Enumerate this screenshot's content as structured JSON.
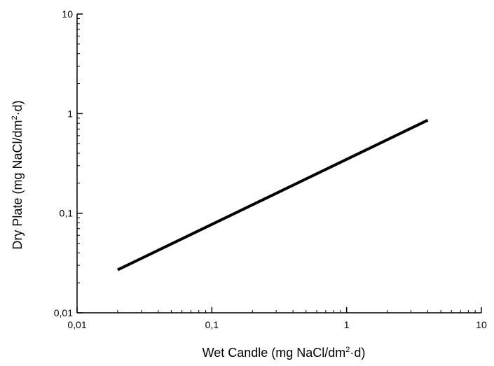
{
  "chart_data": {
    "type": "line",
    "title": "",
    "xlabel": {
      "before": "Wet Candle (mg NaCl/dm",
      "sup": "2",
      "after": "·d)"
    },
    "ylabel": {
      "before": "Dry Plate (mg NaCl/dm",
      "sup": "2",
      "after": "·d)"
    },
    "x_scale": "log",
    "y_scale": "log",
    "xlim": [
      0.01,
      10
    ],
    "ylim": [
      0.01,
      10
    ],
    "x_ticks": [
      {
        "value": 0.01,
        "label": "0,01"
      },
      {
        "value": 0.1,
        "label": "0,1"
      },
      {
        "value": 1,
        "label": "1"
      },
      {
        "value": 10,
        "label": "10"
      }
    ],
    "y_ticks": [
      {
        "value": 0.01,
        "label": "0,01"
      },
      {
        "value": 0.1,
        "label": "0,1"
      },
      {
        "value": 1,
        "label": "1"
      },
      {
        "value": 10,
        "label": "10"
      }
    ],
    "grid": false,
    "legend": false,
    "series": [
      {
        "color": "#000000",
        "x": [
          0.02,
          4
        ],
        "y": [
          0.027,
          0.86
        ]
      }
    ]
  }
}
